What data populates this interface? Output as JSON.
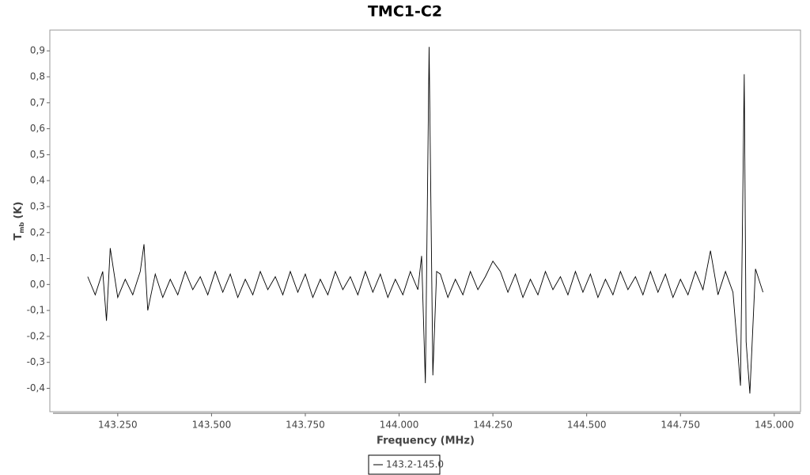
{
  "chart_data": {
    "type": "line",
    "title": "TMC1-C2",
    "x_label": "Frequency (MHz)",
    "y_label": [
      "T",
      "mb",
      "(K)"
    ],
    "xlim": [
      143.069,
      145.07
    ],
    "ylim": [
      -0.49,
      0.98
    ],
    "xticks": [
      {
        "value": 143.25,
        "label": "143.250"
      },
      {
        "value": 143.5,
        "label": "143.500"
      },
      {
        "value": 143.75,
        "label": "143.750"
      },
      {
        "value": 144.0,
        "label": "144.000"
      },
      {
        "value": 144.25,
        "label": "144.250"
      },
      {
        "value": 144.5,
        "label": "144.500"
      },
      {
        "value": 144.75,
        "label": "144.750"
      },
      {
        "value": 145.0,
        "label": "145.000"
      }
    ],
    "yticks": [
      {
        "value": -0.4,
        "label": "-0,4"
      },
      {
        "value": -0.3,
        "label": "-0,3"
      },
      {
        "value": -0.2,
        "label": "-0,2"
      },
      {
        "value": -0.1,
        "label": "-0,1"
      },
      {
        "value": 0,
        "label": "0,0"
      },
      {
        "value": 0.1,
        "label": "0,1"
      },
      {
        "value": 0.2,
        "label": "0,2"
      },
      {
        "value": 0.3,
        "label": "0,3"
      },
      {
        "value": 0.4,
        "label": "0,4"
      },
      {
        "value": 0.5,
        "label": "0,5"
      },
      {
        "value": 0.6,
        "label": "0,6"
      },
      {
        "value": 0.7,
        "label": "0,7"
      },
      {
        "value": 0.8,
        "label": "0,8"
      },
      {
        "value": 0.9,
        "label": "0,9"
      }
    ],
    "x": [
      143.17,
      143.19,
      143.21,
      143.22,
      143.23,
      143.25,
      143.27,
      143.29,
      143.31,
      143.32,
      143.33,
      143.35,
      143.37,
      143.39,
      143.41,
      143.43,
      143.45,
      143.47,
      143.49,
      143.51,
      143.53,
      143.55,
      143.57,
      143.59,
      143.61,
      143.63,
      143.65,
      143.67,
      143.69,
      143.71,
      143.73,
      143.75,
      143.77,
      143.79,
      143.81,
      143.83,
      143.85,
      143.87,
      143.89,
      143.91,
      143.93,
      143.95,
      143.97,
      143.99,
      144.01,
      144.03,
      144.05,
      144.06,
      144.07,
      144.08,
      144.09,
      144.1,
      144.11,
      144.13,
      144.15,
      144.17,
      144.19,
      144.21,
      144.23,
      144.25,
      144.27,
      144.29,
      144.31,
      144.33,
      144.35,
      144.37,
      144.39,
      144.41,
      144.43,
      144.45,
      144.47,
      144.49,
      144.51,
      144.53,
      144.55,
      144.57,
      144.59,
      144.61,
      144.63,
      144.65,
      144.67,
      144.69,
      144.71,
      144.73,
      144.75,
      144.77,
      144.79,
      144.81,
      144.83,
      144.85,
      144.87,
      144.89,
      144.91,
      144.915,
      144.92,
      144.925,
      144.935,
      144.95,
      144.97
    ],
    "series": [
      {
        "name": "143.2-145.0",
        "color": "#000000",
        "values": [
          0.03,
          -0.04,
          0.05,
          -0.14,
          0.14,
          -0.05,
          0.02,
          -0.04,
          0.05,
          0.155,
          -0.1,
          0.04,
          -0.05,
          0.02,
          -0.04,
          0.05,
          -0.02,
          0.03,
          -0.04,
          0.05,
          -0.03,
          0.04,
          -0.05,
          0.02,
          -0.04,
          0.05,
          -0.02,
          0.03,
          -0.04,
          0.05,
          -0.03,
          0.04,
          -0.05,
          0.02,
          -0.04,
          0.05,
          -0.02,
          0.03,
          -0.04,
          0.05,
          -0.03,
          0.04,
          -0.05,
          0.02,
          -0.04,
          0.05,
          -0.02,
          0.11,
          -0.38,
          0.915,
          -0.35,
          0.05,
          0.04,
          -0.05,
          0.02,
          -0.04,
          0.05,
          -0.02,
          0.03,
          0.09,
          0.05,
          -0.03,
          0.04,
          -0.05,
          0.02,
          -0.04,
          0.05,
          -0.02,
          0.03,
          -0.04,
          0.05,
          -0.03,
          0.04,
          -0.05,
          0.02,
          -0.04,
          0.05,
          -0.02,
          0.03,
          -0.04,
          0.05,
          -0.03,
          0.04,
          -0.05,
          0.02,
          -0.04,
          0.05,
          -0.02,
          0.13,
          -0.04,
          0.05,
          -0.03,
          -0.39,
          0.2,
          0.81,
          -0.22,
          -0.42,
          0.06,
          -0.03
        ]
      }
    ]
  }
}
